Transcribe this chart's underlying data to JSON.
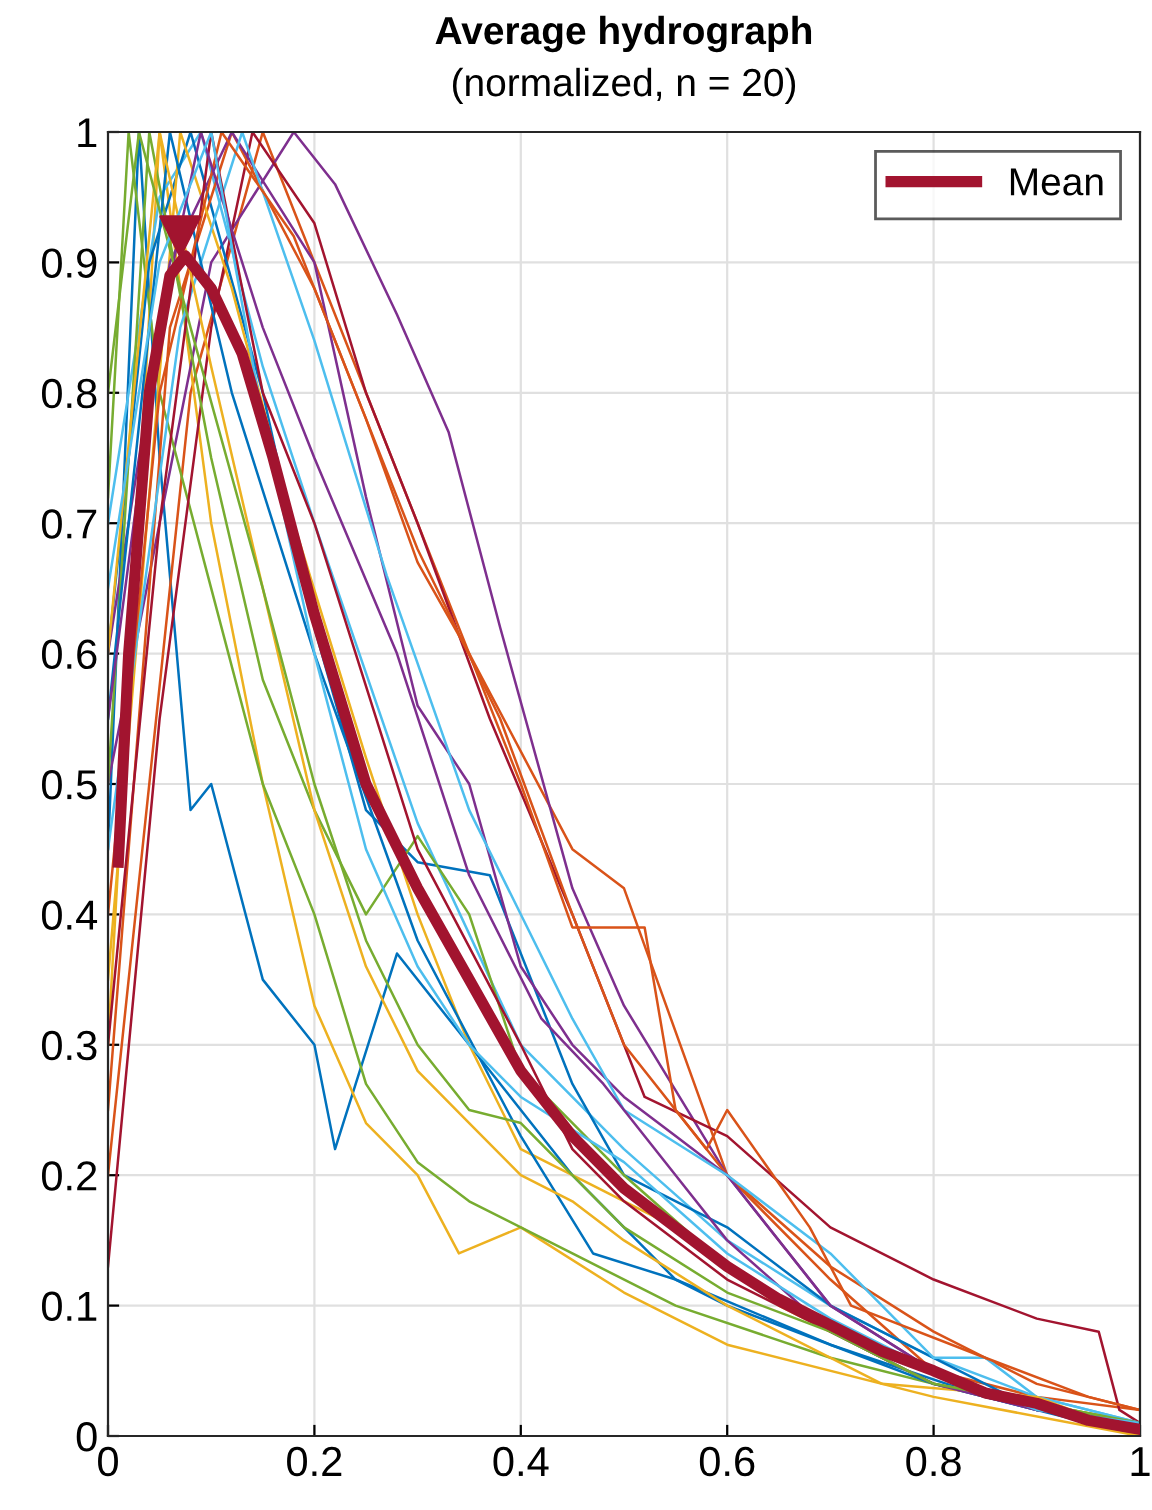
{
  "chart_data": {
    "type": "line",
    "title": "Average hydrograph",
    "subtitle": "(normalized, n = 20)",
    "xlim": [
      0,
      1
    ],
    "ylim": [
      0,
      1
    ],
    "xticks": [
      0,
      0.2,
      0.4,
      0.6,
      0.8,
      1
    ],
    "yticks": [
      0,
      0.1,
      0.2,
      0.3,
      0.4,
      0.5,
      0.6,
      0.7,
      0.8,
      0.9,
      1
    ],
    "grid": true,
    "legend": "top right",
    "line_style": "solid",
    "series": [
      {
        "color": "#0072bd",
        "x": [
          0,
          0.03,
          0.05,
          0.08,
          0.1,
          0.15,
          0.2,
          0.22,
          0.28,
          0.35,
          0.45,
          0.55,
          0.7,
          0.85,
          1
        ],
        "values": [
          0.45,
          1,
          0.75,
          0.48,
          0.5,
          0.35,
          0.3,
          0.22,
          0.37,
          0.3,
          0.2,
          0.12,
          0.07,
          0.03,
          0.0
        ]
      },
      {
        "color": "#d95319",
        "x": [
          0,
          0.08,
          0.15,
          0.25,
          0.35,
          0.45,
          0.5,
          0.6,
          0.7,
          0.8,
          0.9,
          1
        ],
        "values": [
          0.2,
          0.8,
          1,
          0.8,
          0.6,
          0.45,
          0.42,
          0.2,
          0.12,
          0.05,
          0.03,
          0.02
        ]
      },
      {
        "color": "#edb120",
        "x": [
          0,
          0.05,
          0.1,
          0.15,
          0.2,
          0.25,
          0.3,
          0.34,
          0.4,
          0.5,
          0.6,
          0.8,
          1
        ],
        "values": [
          0.3,
          1,
          0.7,
          0.5,
          0.33,
          0.24,
          0.2,
          0.14,
          0.16,
          0.11,
          0.07,
          0.03,
          0.0
        ]
      },
      {
        "color": "#7e2f8e",
        "x": [
          0,
          0.1,
          0.18,
          0.22,
          0.28,
          0.33,
          0.38,
          0.45,
          0.5,
          0.6,
          0.7,
          0.8,
          0.9,
          1
        ],
        "values": [
          0.5,
          0.9,
          1,
          0.96,
          0.86,
          0.77,
          0.62,
          0.42,
          0.33,
          0.2,
          0.1,
          0.05,
          0.02,
          0.01
        ]
      },
      {
        "color": "#77ac30",
        "x": [
          0,
          0.02,
          0.05,
          0.1,
          0.15,
          0.2,
          0.25,
          0.3,
          0.35,
          0.45,
          0.55,
          0.7,
          0.85,
          1
        ],
        "values": [
          0.72,
          1,
          0.8,
          0.65,
          0.5,
          0.4,
          0.27,
          0.21,
          0.18,
          0.14,
          0.1,
          0.06,
          0.03,
          0.01
        ]
      },
      {
        "color": "#4dbeee",
        "x": [
          0,
          0.05,
          0.09,
          0.15,
          0.2,
          0.3,
          0.4,
          0.5,
          0.6,
          0.7,
          0.8,
          0.9,
          1
        ],
        "values": [
          0.7,
          0.95,
          1,
          0.82,
          0.7,
          0.47,
          0.3,
          0.22,
          0.15,
          0.1,
          0.06,
          0.03,
          0.01
        ]
      },
      {
        "color": "#a2142f",
        "x": [
          0,
          0.05,
          0.1,
          0.14,
          0.2,
          0.25,
          0.3,
          0.37,
          0.45,
          0.52,
          0.6,
          0.7,
          0.8,
          0.9,
          0.96,
          0.98,
          1
        ],
        "values": [
          0.13,
          0.55,
          0.85,
          1,
          0.93,
          0.8,
          0.7,
          0.55,
          0.4,
          0.26,
          0.23,
          0.16,
          0.12,
          0.09,
          0.08,
          0.02,
          0.01
        ]
      },
      {
        "color": "#0072bd",
        "x": [
          0,
          0.04,
          0.08,
          0.15,
          0.2,
          0.25,
          0.3,
          0.37,
          0.45,
          0.5,
          0.6,
          0.7,
          0.8,
          0.9,
          1
        ],
        "values": [
          0.6,
          0.9,
          1,
          0.8,
          0.62,
          0.48,
          0.44,
          0.43,
          0.27,
          0.2,
          0.16,
          0.1,
          0.06,
          0.02,
          0.01
        ]
      },
      {
        "color": "#d95319",
        "x": [
          0,
          0.06,
          0.12,
          0.2,
          0.25,
          0.3,
          0.35,
          0.4,
          0.45,
          0.52,
          0.55,
          0.6,
          0.7,
          0.8,
          0.9,
          1
        ],
        "values": [
          0.25,
          0.85,
          1,
          0.88,
          0.78,
          0.67,
          0.6,
          0.5,
          0.39,
          0.39,
          0.25,
          0.2,
          0.13,
          0.08,
          0.04,
          0.02
        ]
      },
      {
        "color": "#edb120",
        "x": [
          0,
          0.07,
          0.12,
          0.18,
          0.25,
          0.3,
          0.35,
          0.4,
          0.45,
          0.55,
          0.65,
          0.8,
          1
        ],
        "values": [
          0.35,
          1,
          0.88,
          0.7,
          0.52,
          0.4,
          0.3,
          0.22,
          0.2,
          0.16,
          0.1,
          0.04,
          0.01
        ]
      },
      {
        "color": "#7e2f8e",
        "x": [
          0,
          0.06,
          0.12,
          0.2,
          0.25,
          0.3,
          0.35,
          0.4,
          0.45,
          0.5,
          0.55,
          0.6,
          0.7,
          0.8,
          0.9,
          1
        ],
        "values": [
          0.6,
          0.9,
          1,
          0.9,
          0.72,
          0.56,
          0.5,
          0.36,
          0.3,
          0.26,
          0.23,
          0.2,
          0.1,
          0.05,
          0.02,
          0.01
        ]
      },
      {
        "color": "#77ac30",
        "x": [
          0,
          0.04,
          0.1,
          0.15,
          0.2,
          0.25,
          0.3,
          0.35,
          0.4,
          0.5,
          0.6,
          0.7,
          0.8,
          1
        ],
        "values": [
          0.5,
          1,
          0.75,
          0.58,
          0.48,
          0.4,
          0.46,
          0.4,
          0.28,
          0.2,
          0.13,
          0.08,
          0.04,
          0.01
        ]
      },
      {
        "color": "#4dbeee",
        "x": [
          0,
          0.07,
          0.13,
          0.2,
          0.27,
          0.35,
          0.45,
          0.5,
          0.6,
          0.7,
          0.8,
          0.85,
          0.9,
          1
        ],
        "values": [
          0.45,
          0.85,
          1,
          0.84,
          0.66,
          0.48,
          0.32,
          0.25,
          0.2,
          0.14,
          0.06,
          0.06,
          0.03,
          0.01
        ]
      },
      {
        "color": "#a2142f",
        "x": [
          0,
          0.05,
          0.1,
          0.15,
          0.2,
          0.3,
          0.4,
          0.45,
          0.5,
          0.6,
          0.7,
          0.8,
          0.9,
          1
        ],
        "values": [
          0.3,
          0.7,
          1,
          0.8,
          0.7,
          0.45,
          0.3,
          0.22,
          0.18,
          0.12,
          0.08,
          0.05,
          0.02,
          0.01
        ]
      },
      {
        "color": "#0072bd",
        "x": [
          0,
          0.06,
          0.12,
          0.2,
          0.3,
          0.4,
          0.47,
          0.55,
          0.6,
          0.7,
          0.8,
          0.9,
          1
        ],
        "values": [
          0.55,
          1,
          0.8,
          0.6,
          0.38,
          0.23,
          0.14,
          0.12,
          0.1,
          0.07,
          0.04,
          0.02,
          0.01
        ]
      },
      {
        "color": "#d95319",
        "x": [
          0,
          0.05,
          0.11,
          0.18,
          0.25,
          0.3,
          0.38,
          0.45,
          0.5,
          0.58,
          0.6,
          0.68,
          0.72,
          0.85,
          0.95,
          1
        ],
        "values": [
          0.4,
          0.8,
          1,
          0.92,
          0.78,
          0.68,
          0.55,
          0.4,
          0.3,
          0.22,
          0.25,
          0.16,
          0.1,
          0.06,
          0.03,
          0.02
        ]
      },
      {
        "color": "#edb120",
        "x": [
          0,
          0.05,
          0.1,
          0.15,
          0.2,
          0.25,
          0.3,
          0.35,
          0.4,
          0.45,
          0.5,
          0.6,
          0.75,
          0.9,
          1
        ],
        "values": [
          0.6,
          1,
          0.82,
          0.65,
          0.48,
          0.36,
          0.28,
          0.24,
          0.2,
          0.18,
          0.15,
          0.1,
          0.04,
          0.03,
          0.0
        ]
      },
      {
        "color": "#7e2f8e",
        "x": [
          0,
          0.05,
          0.09,
          0.15,
          0.2,
          0.28,
          0.35,
          0.42,
          0.48,
          0.55,
          0.6,
          0.7,
          0.8,
          0.9,
          1
        ],
        "values": [
          0.55,
          0.85,
          1,
          0.85,
          0.75,
          0.6,
          0.43,
          0.32,
          0.27,
          0.2,
          0.15,
          0.08,
          0.04,
          0.02,
          0.01
        ]
      },
      {
        "color": "#77ac30",
        "x": [
          0,
          0.03,
          0.08,
          0.15,
          0.2,
          0.25,
          0.3,
          0.35,
          0.4,
          0.5,
          0.6,
          0.7,
          0.8,
          1
        ],
        "values": [
          0.8,
          1,
          0.85,
          0.65,
          0.5,
          0.38,
          0.3,
          0.25,
          0.24,
          0.16,
          0.11,
          0.08,
          0.04,
          0.01
        ]
      },
      {
        "color": "#4dbeee",
        "x": [
          0,
          0.05,
          0.1,
          0.15,
          0.2,
          0.25,
          0.3,
          0.35,
          0.4,
          0.5,
          0.6,
          0.7,
          0.8,
          0.9,
          1
        ],
        "values": [
          0.65,
          0.9,
          1,
          0.78,
          0.6,
          0.45,
          0.36,
          0.3,
          0.26,
          0.21,
          0.14,
          0.09,
          0.05,
          0.02,
          0.01
        ]
      },
      {
        "name": "Mean",
        "color": "#a2142f",
        "x": [
          0.01,
          0.02,
          0.04,
          0.06,
          0.075,
          0.1,
          0.13,
          0.16,
          0.2,
          0.25,
          0.3,
          0.35,
          0.4,
          0.45,
          0.5,
          0.55,
          0.6,
          0.65,
          0.7,
          0.75,
          0.8,
          0.85,
          0.9,
          0.95,
          1
        ],
        "values": [
          0.44,
          0.6,
          0.8,
          0.89,
          0.905,
          0.88,
          0.83,
          0.75,
          0.63,
          0.5,
          0.42,
          0.35,
          0.28,
          0.23,
          0.19,
          0.16,
          0.13,
          0.105,
          0.085,
          0.065,
          0.05,
          0.033,
          0.025,
          0.012,
          0.005
        ]
      },
      {
        "type": "scatter",
        "marker": "triangle",
        "color": "#a2142f",
        "x": [
          0.07
        ],
        "values": [
          0.92
        ]
      }
    ]
  }
}
